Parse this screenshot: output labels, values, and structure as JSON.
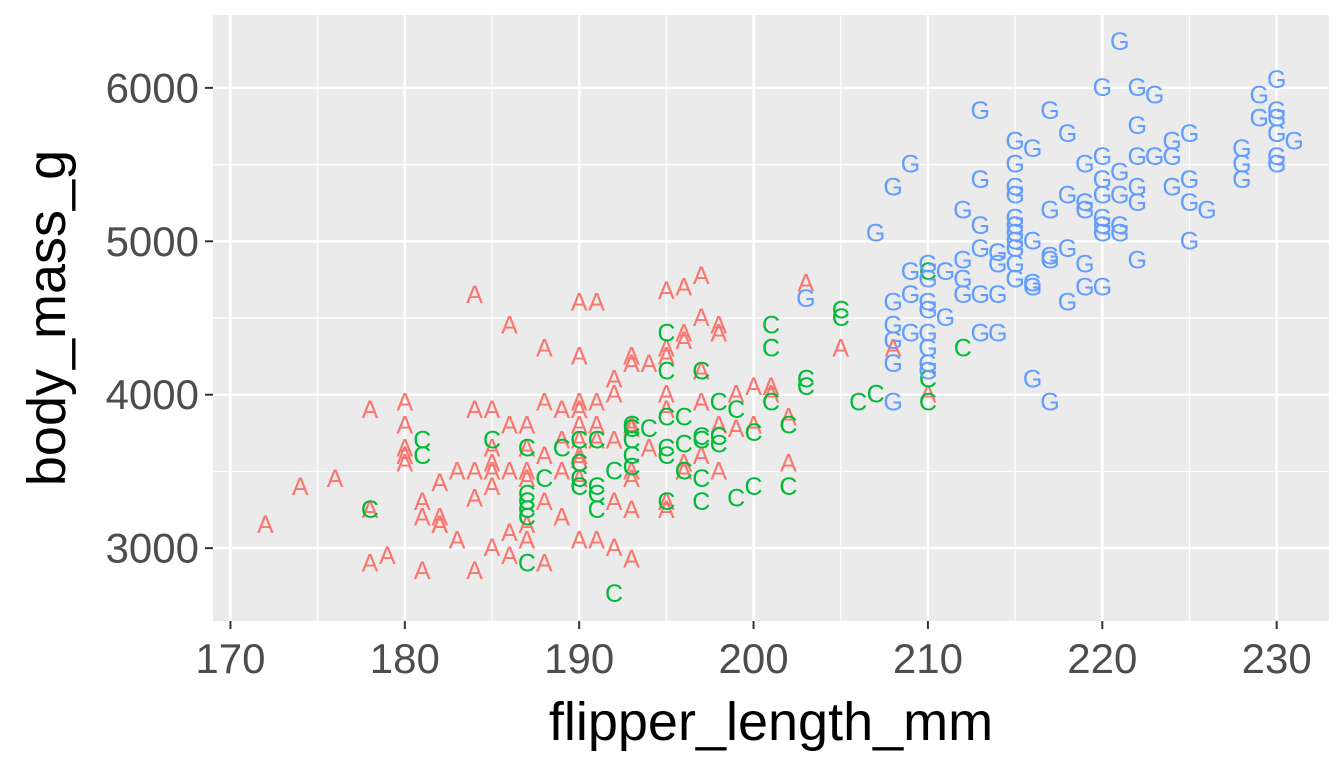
{
  "chart_data": {
    "type": "scatter",
    "title": "",
    "xlabel": "flipper_length_mm",
    "ylabel": "body_mass_g",
    "xlim": [
      169,
      233
    ],
    "ylim": [
      2525,
      6475
    ],
    "x_ticks": [
      170,
      180,
      190,
      200,
      210,
      220,
      230
    ],
    "y_ticks": [
      3000,
      4000,
      5000,
      6000
    ],
    "grid": true,
    "legend": "none",
    "series": [
      {
        "label": "A",
        "color": "#F8766D",
        "points": [
          [
            172,
            3150
          ],
          [
            174,
            3400
          ],
          [
            176,
            3450
          ],
          [
            178,
            3900
          ],
          [
            178,
            3250
          ],
          [
            178,
            2900
          ],
          [
            179,
            2950
          ],
          [
            180,
            3950
          ],
          [
            180,
            3800
          ],
          [
            180,
            3650
          ],
          [
            180,
            3600
          ],
          [
            180,
            3550
          ],
          [
            181,
            3300
          ],
          [
            181,
            3200
          ],
          [
            181,
            2850
          ],
          [
            182,
            3200
          ],
          [
            182,
            3150
          ],
          [
            182,
            3150
          ],
          [
            182,
            3425
          ],
          [
            183,
            3500
          ],
          [
            183,
            3050
          ],
          [
            184,
            3500
          ],
          [
            184,
            3325
          ],
          [
            184,
            3900
          ],
          [
            184,
            2850
          ],
          [
            184,
            4650
          ],
          [
            185,
            3900
          ],
          [
            185,
            3650
          ],
          [
            185,
            3500
          ],
          [
            185,
            3400
          ],
          [
            185,
            3000
          ],
          [
            185,
            3550
          ],
          [
            186,
            3500
          ],
          [
            186,
            3100
          ],
          [
            186,
            2950
          ],
          [
            186,
            3800
          ],
          [
            186,
            4450
          ],
          [
            187,
            3800
          ],
          [
            187,
            3650
          ],
          [
            187,
            3500
          ],
          [
            187,
            3450
          ],
          [
            187,
            3150
          ],
          [
            187,
            3050
          ],
          [
            188,
            4300
          ],
          [
            188,
            3950
          ],
          [
            188,
            3600
          ],
          [
            188,
            3300
          ],
          [
            188,
            2900
          ],
          [
            189,
            3900
          ],
          [
            189,
            3700
          ],
          [
            189,
            3500
          ],
          [
            189,
            3200
          ],
          [
            190,
            4600
          ],
          [
            190,
            4250
          ],
          [
            190,
            3950
          ],
          [
            190,
            3900
          ],
          [
            190,
            3800
          ],
          [
            190,
            3700
          ],
          [
            190,
            3600
          ],
          [
            190,
            3575
          ],
          [
            190,
            3450
          ],
          [
            190,
            3050
          ],
          [
            191,
            4600
          ],
          [
            191,
            3950
          ],
          [
            191,
            3800
          ],
          [
            191,
            3700
          ],
          [
            191,
            3050
          ],
          [
            192,
            4100
          ],
          [
            192,
            4000
          ],
          [
            192,
            3700
          ],
          [
            192,
            3300
          ],
          [
            192,
            3000
          ],
          [
            193,
            4250
          ],
          [
            193,
            4200
          ],
          [
            193,
            3800
          ],
          [
            193,
            3775
          ],
          [
            193,
            3500
          ],
          [
            193,
            3450
          ],
          [
            193,
            3250
          ],
          [
            193,
            2925
          ],
          [
            194,
            4200
          ],
          [
            194,
            3650
          ],
          [
            195,
            4675
          ],
          [
            195,
            4300
          ],
          [
            195,
            4250
          ],
          [
            195,
            4000
          ],
          [
            195,
            3900
          ],
          [
            195,
            3300
          ],
          [
            195,
            3250
          ],
          [
            196,
            4700
          ],
          [
            196,
            4400
          ],
          [
            196,
            4350
          ],
          [
            196,
            3550
          ],
          [
            196,
            3500
          ],
          [
            197,
            4775
          ],
          [
            197,
            4500
          ],
          [
            197,
            4150
          ],
          [
            197,
            3950
          ],
          [
            197,
            3600
          ],
          [
            198,
            4400
          ],
          [
            198,
            4450
          ],
          [
            198,
            3800
          ],
          [
            198,
            3500
          ],
          [
            199,
            3775
          ],
          [
            199,
            4000
          ],
          [
            200,
            4050
          ],
          [
            200,
            3800
          ],
          [
            201,
            4050
          ],
          [
            201,
            4000
          ],
          [
            202,
            3850
          ],
          [
            202,
            3550
          ],
          [
            203,
            4725
          ],
          [
            205,
            4300
          ],
          [
            208,
            4300
          ],
          [
            210,
            4000
          ]
        ]
      },
      {
        "label": "C",
        "color": "#00BA38",
        "points": [
          [
            178,
            3250
          ],
          [
            181,
            3700
          ],
          [
            181,
            3600
          ],
          [
            185,
            3700
          ],
          [
            187,
            3650
          ],
          [
            187,
            3350
          ],
          [
            187,
            3300
          ],
          [
            187,
            3250
          ],
          [
            187,
            3200
          ],
          [
            187,
            2900
          ],
          [
            188,
            3450
          ],
          [
            189,
            3650
          ],
          [
            190,
            3700
          ],
          [
            190,
            3550
          ],
          [
            190,
            3450
          ],
          [
            190,
            3400
          ],
          [
            191,
            3700
          ],
          [
            191,
            3400
          ],
          [
            191,
            3350
          ],
          [
            191,
            3250
          ],
          [
            192,
            2700
          ],
          [
            192,
            3500
          ],
          [
            193,
            3800
          ],
          [
            193,
            3775
          ],
          [
            193,
            3700
          ],
          [
            193,
            3600
          ],
          [
            193,
            3525
          ],
          [
            194,
            3775
          ],
          [
            195,
            4400
          ],
          [
            195,
            4150
          ],
          [
            195,
            3850
          ],
          [
            195,
            3650
          ],
          [
            195,
            3600
          ],
          [
            195,
            3300
          ],
          [
            196,
            3850
          ],
          [
            196,
            3675
          ],
          [
            196,
            3500
          ],
          [
            197,
            4150
          ],
          [
            197,
            3725
          ],
          [
            197,
            3700
          ],
          [
            197,
            3450
          ],
          [
            197,
            3300
          ],
          [
            198,
            3950
          ],
          [
            198,
            3725
          ],
          [
            198,
            3675
          ],
          [
            199,
            3900
          ],
          [
            199,
            3325
          ],
          [
            200,
            3750
          ],
          [
            200,
            3400
          ],
          [
            201,
            4450
          ],
          [
            201,
            4300
          ],
          [
            201,
            3950
          ],
          [
            202,
            3800
          ],
          [
            202,
            3400
          ],
          [
            203,
            4100
          ],
          [
            203,
            4050
          ],
          [
            205,
            4550
          ],
          [
            205,
            4500
          ],
          [
            206,
            3950
          ],
          [
            207,
            4000
          ],
          [
            210,
            4800
          ],
          [
            210,
            4100
          ],
          [
            210,
            3950
          ],
          [
            212,
            4300
          ]
        ]
      },
      {
        "label": "G",
        "color": "#619CFF",
        "points": [
          [
            203,
            4625
          ],
          [
            207,
            5050
          ],
          [
            208,
            5350
          ],
          [
            208,
            4600
          ],
          [
            208,
            4450
          ],
          [
            208,
            4350
          ],
          [
            208,
            4200
          ],
          [
            208,
            3950
          ],
          [
            209,
            5500
          ],
          [
            209,
            4800
          ],
          [
            209,
            4650
          ],
          [
            209,
            4400
          ],
          [
            210,
            4850
          ],
          [
            210,
            4750
          ],
          [
            210,
            4600
          ],
          [
            210,
            4550
          ],
          [
            210,
            4400
          ],
          [
            210,
            4300
          ],
          [
            210,
            4200
          ],
          [
            210,
            4150
          ],
          [
            211,
            4800
          ],
          [
            211,
            4500
          ],
          [
            212,
            5200
          ],
          [
            212,
            4875
          ],
          [
            212,
            4750
          ],
          [
            212,
            4650
          ],
          [
            213,
            5850
          ],
          [
            213,
            5400
          ],
          [
            213,
            5100
          ],
          [
            213,
            4950
          ],
          [
            213,
            4650
          ],
          [
            213,
            4400
          ],
          [
            214,
            4925
          ],
          [
            214,
            4850
          ],
          [
            214,
            4650
          ],
          [
            214,
            4400
          ],
          [
            215,
            5650
          ],
          [
            215,
            5500
          ],
          [
            215,
            5350
          ],
          [
            215,
            5300
          ],
          [
            215,
            5150
          ],
          [
            215,
            5100
          ],
          [
            215,
            5050
          ],
          [
            215,
            5000
          ],
          [
            215,
            4950
          ],
          [
            215,
            4850
          ],
          [
            215,
            4750
          ],
          [
            216,
            5600
          ],
          [
            216,
            5000
          ],
          [
            216,
            4725
          ],
          [
            216,
            4700
          ],
          [
            216,
            4100
          ],
          [
            217,
            5850
          ],
          [
            217,
            5200
          ],
          [
            217,
            4900
          ],
          [
            217,
            4875
          ],
          [
            217,
            3950
          ],
          [
            218,
            5700
          ],
          [
            218,
            5300
          ],
          [
            218,
            4950
          ],
          [
            218,
            4600
          ],
          [
            219,
            5500
          ],
          [
            219,
            5250
          ],
          [
            219,
            5200
          ],
          [
            219,
            4850
          ],
          [
            219,
            4700
          ],
          [
            220,
            6000
          ],
          [
            220,
            5550
          ],
          [
            220,
            5400
          ],
          [
            220,
            5300
          ],
          [
            220,
            5150
          ],
          [
            220,
            5100
          ],
          [
            220,
            5050
          ],
          [
            220,
            4700
          ],
          [
            221,
            6300
          ],
          [
            221,
            5450
          ],
          [
            221,
            5300
          ],
          [
            221,
            5100
          ],
          [
            221,
            5050
          ],
          [
            222,
            6000
          ],
          [
            222,
            5750
          ],
          [
            222,
            5550
          ],
          [
            222,
            5350
          ],
          [
            222,
            5250
          ],
          [
            222,
            4875
          ],
          [
            223,
            5950
          ],
          [
            223,
            5550
          ],
          [
            224,
            5550
          ],
          [
            224,
            5350
          ],
          [
            224,
            5650
          ],
          [
            225,
            5700
          ],
          [
            225,
            5400
          ],
          [
            225,
            5250
          ],
          [
            225,
            5000
          ],
          [
            226,
            5200
          ],
          [
            228,
            5600
          ],
          [
            228,
            5500
          ],
          [
            228,
            5400
          ],
          [
            229,
            5950
          ],
          [
            229,
            5800
          ],
          [
            230,
            6050
          ],
          [
            230,
            5850
          ],
          [
            230,
            5800
          ],
          [
            230,
            5700
          ],
          [
            230,
            5550
          ],
          [
            230,
            5500
          ],
          [
            231,
            5650
          ]
        ]
      }
    ]
  }
}
